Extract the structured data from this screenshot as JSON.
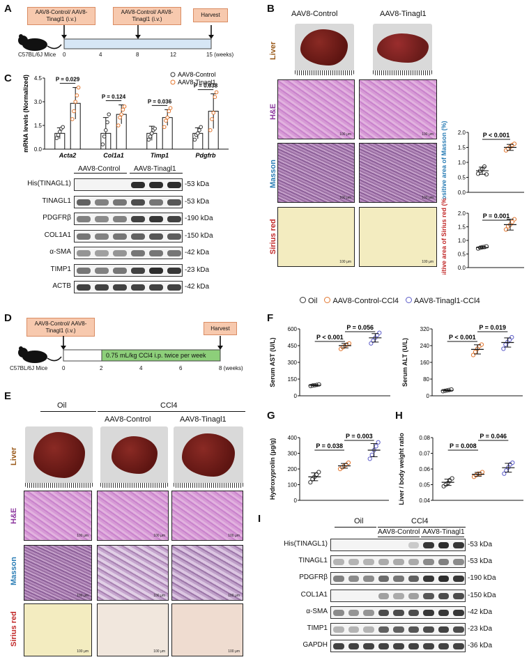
{
  "panels": {
    "A": "A",
    "B": "B",
    "C": "C",
    "D": "D",
    "E": "E",
    "F": "F",
    "G": "G",
    "H": "H",
    "I": "I"
  },
  "panelA": {
    "box1": "AAV8-Control/ AAV8-Tinagl1 (i.v.)",
    "box2": "AAV8-Control/ AAV8- Tinagl1 (i.v.)",
    "box3": "Harvest",
    "mouse": "C57BL/6J Mice",
    "ticks": [
      "0",
      "4",
      "8",
      "12",
      "15 (weeks)"
    ]
  },
  "panelB": {
    "col1": "AAV8-Control",
    "col2": "AAV8-Tinagl1",
    "rows": [
      "Liver",
      "H&E",
      "Masson",
      "Sirius red"
    ],
    "scale": "100 μm"
  },
  "panelB_masson_chart": {
    "type": "scatter",
    "ylabel": "Positive area of Masson (%)",
    "yticks": [
      "0.0",
      "0.5",
      "1.0",
      "1.5",
      "2.0"
    ],
    "ylim": [
      0,
      2.0
    ],
    "pval": "P < 0.001",
    "series": [
      {
        "values": [
          0.62,
          0.72,
          0.78,
          0.86,
          0.6
        ],
        "mean": 0.72,
        "sd": 0.12,
        "color": "#333333"
      },
      {
        "values": [
          1.4,
          1.46,
          1.52,
          1.58,
          1.62
        ],
        "mean": 1.5,
        "sd": 0.1,
        "color": "#e2762e"
      }
    ]
  },
  "panelB_sirius_chart": {
    "type": "scatter",
    "ylabel": "Positive area of Sirius red (%)",
    "yticks": [
      "0.0",
      "0.5",
      "1.0",
      "1.5",
      "2.0"
    ],
    "ylim": [
      0,
      2.0
    ],
    "pval": "P = 0.001",
    "series": [
      {
        "values": [
          0.7,
          0.73,
          0.75,
          0.76,
          0.78
        ],
        "mean": 0.74,
        "sd": 0.04,
        "color": "#333333"
      },
      {
        "values": [
          1.4,
          1.52,
          1.58,
          1.68,
          1.78
        ],
        "mean": 1.58,
        "sd": 0.2,
        "color": "#e2762e"
      }
    ]
  },
  "chart_data": [
    {
      "type": "bar",
      "ylabel": "mRNA levels (Normalized)",
      "categories": [
        "Acta2",
        "Col1a1",
        "Timp1",
        "Pdgfrb"
      ],
      "yticks": [
        "0.0",
        "1.5",
        "3.0",
        "4.5"
      ],
      "ylim": [
        0,
        4.5
      ],
      "legend": [
        "AAV8-Control",
        "AAV8-Tinagl1"
      ],
      "pvals": [
        "P = 0.029",
        "P = 0.124",
        "P = 0.036",
        "P = 0.038"
      ],
      "series": [
        {
          "name": "AAV8-Control",
          "values": [
            1.0,
            1.0,
            1.0,
            1.0
          ],
          "sd": [
            0.35,
            1.0,
            0.45,
            0.35
          ],
          "color": "#333333",
          "points": [
            [
              0.7,
              0.9,
              1.1,
              1.3,
              1.4
            ],
            [
              0.3,
              0.8,
              1.2,
              1.7,
              2.2
            ],
            [
              0.6,
              0.8,
              1.0,
              1.2,
              1.3
            ],
            [
              0.6,
              0.9,
              1.0,
              1.2,
              1.4
            ]
          ]
        },
        {
          "name": "AAV8-Tinagl1",
          "values": [
            2.9,
            2.2,
            2.0,
            2.4
          ],
          "sd": [
            1.0,
            0.6,
            0.5,
            1.1
          ],
          "color": "#e2762e",
          "points": [
            [
              1.9,
              2.4,
              3.0,
              3.4,
              3.9
            ],
            [
              1.5,
              2.0,
              2.2,
              2.5,
              2.7
            ],
            [
              1.4,
              1.8,
              2.0,
              2.4,
              2.6
            ],
            [
              1.2,
              1.9,
              2.3,
              3.3,
              3.6
            ]
          ]
        }
      ]
    },
    {
      "type": "scatter",
      "ylabel": "Serum AST (U/L)",
      "yticks": [
        "0",
        "150",
        "300",
        "450",
        "600"
      ],
      "ylim": [
        0,
        600
      ],
      "pvals": [
        "P < 0.001",
        "P = 0.056"
      ],
      "series": [
        {
          "name": "Oil",
          "values": [
            88,
            92,
            95,
            98,
            102
          ],
          "mean": 95,
          "sd": 6,
          "color": "#333333"
        },
        {
          "name": "AAV8-Control-CCl4",
          "values": [
            420,
            435,
            448,
            460,
            470
          ],
          "mean": 450,
          "sd": 20,
          "color": "#e2762e"
        },
        {
          "name": "AAV8-Tinagl1-CCl4",
          "values": [
            470,
            495,
            520,
            545,
            565
          ],
          "mean": 520,
          "sd": 38,
          "color": "#5b5bc9"
        }
      ]
    },
    {
      "type": "scatter",
      "ylabel": "Serum ALT (U/L)",
      "yticks": [
        "0",
        "80",
        "160",
        "240",
        "320"
      ],
      "ylim": [
        0,
        320
      ],
      "pvals": [
        "P < 0.001",
        "P = 0.019"
      ],
      "series": [
        {
          "name": "Oil",
          "values": [
            22,
            24,
            26,
            28,
            30
          ],
          "mean": 26,
          "sd": 3,
          "color": "#333333"
        },
        {
          "name": "AAV8-Control-CCl4",
          "values": [
            195,
            210,
            225,
            238,
            245
          ],
          "mean": 222,
          "sd": 22,
          "color": "#e2762e"
        },
        {
          "name": "AAV8-Tinagl1-CCl4",
          "values": [
            225,
            245,
            258,
            268,
            280
          ],
          "mean": 255,
          "sd": 22,
          "color": "#5b5bc9"
        }
      ]
    },
    {
      "type": "scatter",
      "ylabel": "Hydroxyprolin (μg/g)",
      "yticks": [
        "0",
        "100",
        "200",
        "300",
        "400"
      ],
      "ylim": [
        0,
        400
      ],
      "pvals": [
        "P = 0.038",
        "P = 0.003"
      ],
      "series": [
        {
          "name": "Oil",
          "values": [
            115,
            135,
            150,
            165,
            180
          ],
          "mean": 150,
          "sd": 25,
          "color": "#333333"
        },
        {
          "name": "AAV8-Control-CCl4",
          "values": [
            200,
            210,
            220,
            228,
            240
          ],
          "mean": 220,
          "sd": 15,
          "color": "#e2762e"
        },
        {
          "name": "AAV8-Tinagl1-CCl4",
          "values": [
            265,
            290,
            320,
            345,
            370
          ],
          "mean": 320,
          "sd": 42,
          "color": "#5b5bc9"
        }
      ]
    },
    {
      "type": "scatter",
      "ylabel": "Liver / body weight ratio",
      "yticks": [
        "0.04",
        "0.05",
        "0.06",
        "0.07",
        "0.08"
      ],
      "ylim": [
        0.04,
        0.08
      ],
      "pvals": [
        "P = 0.008",
        "P = 0.046"
      ],
      "series": [
        {
          "name": "Oil",
          "values": [
            0.049,
            0.05,
            0.051,
            0.053,
            0.054
          ],
          "mean": 0.0515,
          "sd": 0.002,
          "color": "#333333"
        },
        {
          "name": "AAV8-Control-CCl4",
          "values": [
            0.055,
            0.056,
            0.057,
            0.057,
            0.058
          ],
          "mean": 0.0566,
          "sd": 0.0012,
          "color": "#e2762e"
        },
        {
          "name": "AAV8-Tinagl1-CCl4",
          "values": [
            0.057,
            0.059,
            0.061,
            0.063,
            0.064
          ],
          "mean": 0.0608,
          "sd": 0.0028,
          "color": "#5b5bc9"
        }
      ]
    }
  ],
  "panelC_blot": {
    "groups": [
      "AAV8-Control",
      "AAV8-Tinagl1"
    ],
    "rows": [
      {
        "name": "His(TINAGL1)",
        "kda": "53 kDa"
      },
      {
        "name": "TINAGL1",
        "kda": "53 kDa"
      },
      {
        "name": "PDGFRβ",
        "kda": "190 kDa"
      },
      {
        "name": "COL1A1",
        "kda": "150 kDa"
      },
      {
        "name": "α-SMA",
        "kda": "42 kDa"
      },
      {
        "name": "TIMP1",
        "kda": "23 kDa"
      },
      {
        "name": "ACTB",
        "kda": "42 kDa"
      }
    ]
  },
  "legendFGH": [
    "Oil",
    "AAV8-Control-CCl4",
    "AAV8-Tinagl1-CCl4"
  ],
  "panelD": {
    "box1": "AAV8-Control/ AAV8-Tinagl1 (i.v.)",
    "box2": "Harvest",
    "mouse": "C57BL/6J Mice",
    "treatment": "0.75 mL/kg CCl4 i.p. twice per week",
    "ticks": [
      "0",
      "2",
      "4",
      "6",
      "8 (weeks)"
    ]
  },
  "panelE": {
    "groups": [
      "Oil",
      "CCl4"
    ],
    "cols": [
      "AAV8-Control",
      "AAV8-Tinagl1"
    ],
    "rows": [
      "Liver",
      "H&E",
      "Masson",
      "Sirius red"
    ]
  },
  "panelI": {
    "groups": [
      "Oil",
      "CCl4"
    ],
    "sub": [
      "AAV8-Control",
      "AAV8-Tinagl1"
    ],
    "rows": [
      {
        "name": "His(TINAGL1)",
        "kda": "53 kDa"
      },
      {
        "name": "TINAGL1",
        "kda": "53 kDa"
      },
      {
        "name": "PDGFRβ",
        "kda": "190 kDa"
      },
      {
        "name": "COL1A1",
        "kda": "150 kDa"
      },
      {
        "name": "α-SMA",
        "kda": "42 kDa"
      },
      {
        "name": "TIMP1",
        "kda": "23 kDa"
      },
      {
        "name": "GAPDH",
        "kda": "36 kDa"
      }
    ]
  }
}
